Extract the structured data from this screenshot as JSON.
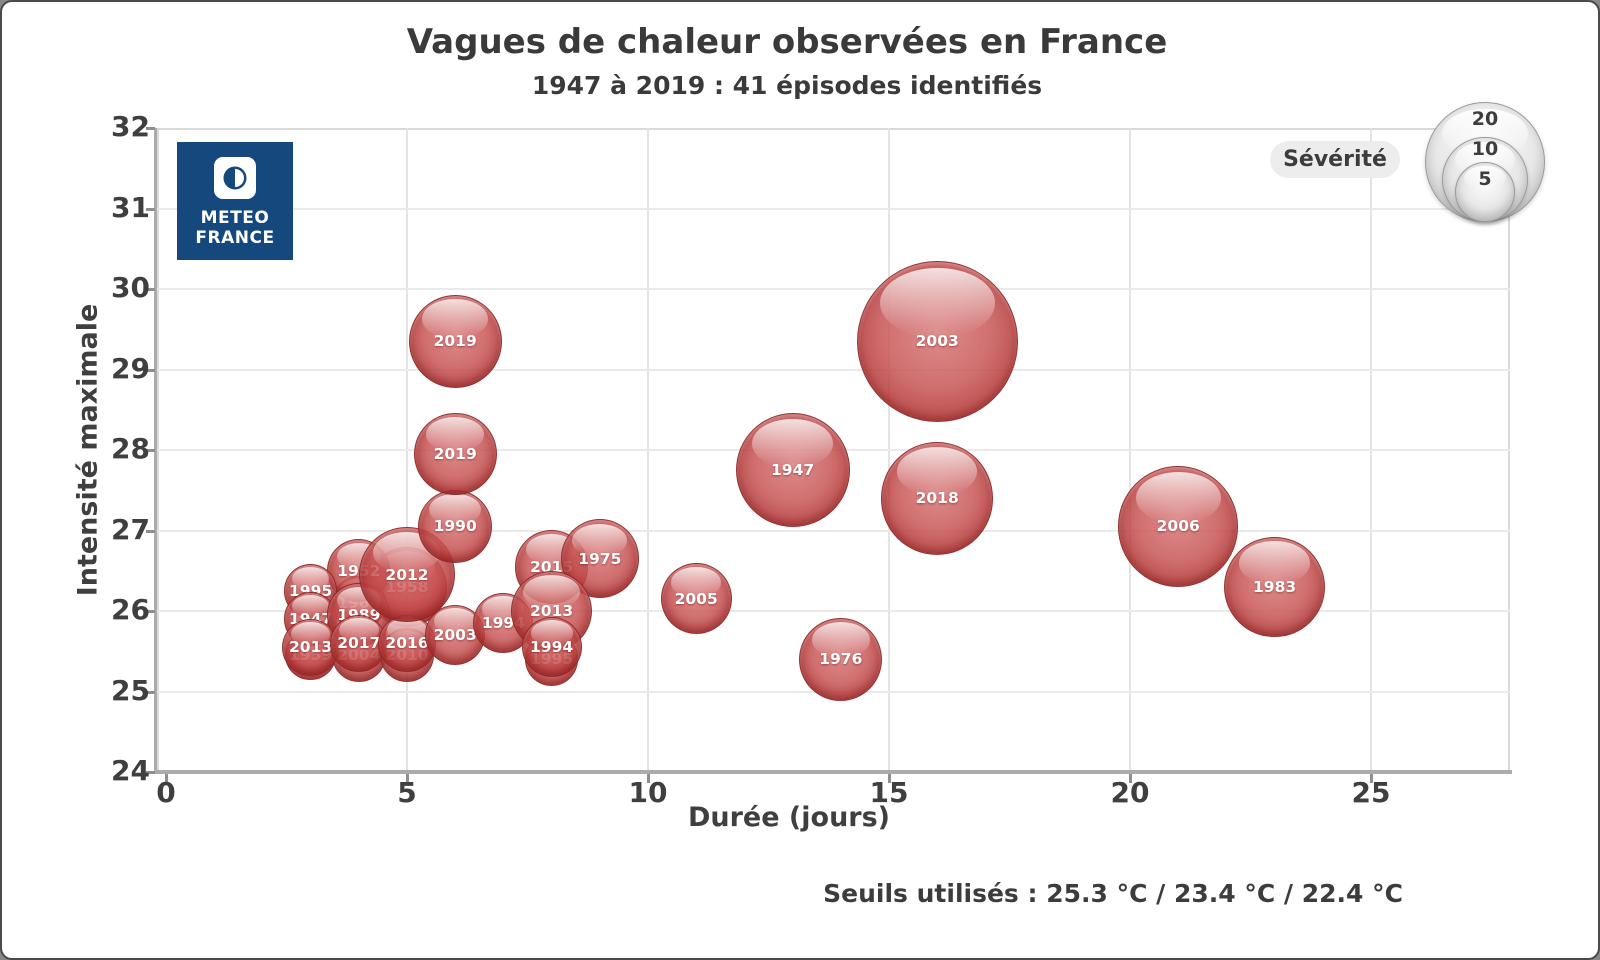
{
  "title": "Vagues de chaleur observées en France",
  "subtitle": "1947 à 2019 : 41 épisodes identifiés",
  "footer": {
    "thresholds_note": "Seuils utilisés : 25.3 °C / 23.4 °C / 22.4 °C"
  },
  "logo": {
    "line1": "METEO",
    "line2": "FRANCE",
    "bg_color": "#15497e"
  },
  "legend": {
    "title": "Sévérité",
    "sizes": [
      20,
      10,
      5
    ]
  },
  "chart_data": {
    "type": "scatter",
    "title": "Vagues de chaleur observées en France",
    "subtitle": "1947 à 2019 : 41 épisodes identifiés",
    "xlabel": "Durée (jours)",
    "ylabel": "Intensité maximale",
    "xlim": [
      0,
      28
    ],
    "ylim": [
      24,
      32
    ],
    "x_ticks": [
      0,
      5,
      10,
      15,
      20,
      25
    ],
    "y_ticks": [
      24,
      25,
      26,
      27,
      28,
      29,
      30,
      31,
      32
    ],
    "grid": true,
    "bubble_color": "#c0504d",
    "size_legend_values": [
      20,
      10,
      5
    ],
    "points": [
      {
        "year": "1958",
        "duration_days": 5,
        "intensity_max": 26.3,
        "severity": 9,
        "hidden": true
      },
      {
        "year": "1964",
        "duration_days": 4,
        "intensity_max": 26.1,
        "severity": 4,
        "hidden": true
      },
      {
        "year": "1959",
        "duration_days": 3,
        "intensity_max": 25.45,
        "severity": 3.5,
        "hidden": true
      },
      {
        "year": "2004",
        "duration_days": 4,
        "intensity_max": 25.45,
        "severity": 4,
        "hidden": true
      },
      {
        "year": "2010",
        "duration_days": 5,
        "intensity_max": 25.45,
        "severity": 4,
        "hidden": true
      },
      {
        "year": "1995",
        "duration_days": 8,
        "intensity_max": 25.4,
        "severity": 4,
        "hidden": true
      },
      {
        "year": "1952",
        "duration_days": 4,
        "intensity_max": 26.5,
        "severity": 5.5
      },
      {
        "year": "1995",
        "duration_days": 3,
        "intensity_max": 26.25,
        "severity": 4
      },
      {
        "year": "1947",
        "duration_days": 3,
        "intensity_max": 25.9,
        "severity": 4
      },
      {
        "year": "2013",
        "duration_days": 3,
        "intensity_max": 25.55,
        "severity": 4.5
      },
      {
        "year": "1989",
        "duration_days": 4,
        "intensity_max": 25.95,
        "severity": 5.5
      },
      {
        "year": "2017",
        "duration_days": 4,
        "intensity_max": 25.6,
        "severity": 4.5
      },
      {
        "year": "2016",
        "duration_days": 5,
        "intensity_max": 25.6,
        "severity": 4.5
      },
      {
        "year": "2012",
        "duration_days": 5,
        "intensity_max": 26.45,
        "severity": 12.5
      },
      {
        "year": "2003",
        "duration_days": 6,
        "intensity_max": 25.7,
        "severity": 5
      },
      {
        "year": "1994",
        "duration_days": 7,
        "intensity_max": 25.85,
        "severity": 5
      },
      {
        "year": "1990",
        "duration_days": 6,
        "intensity_max": 27.05,
        "severity": 7.5
      },
      {
        "year": "2019",
        "duration_days": 6,
        "intensity_max": 27.95,
        "severity": 9.5
      },
      {
        "year": "2019",
        "duration_days": 6,
        "intensity_max": 29.35,
        "severity": 12
      },
      {
        "year": "2015",
        "duration_days": 8,
        "intensity_max": 26.55,
        "severity": 7.5
      },
      {
        "year": "1975",
        "duration_days": 9,
        "intensity_max": 26.65,
        "severity": 8.5
      },
      {
        "year": "2013",
        "duration_days": 8,
        "intensity_max": 26.0,
        "severity": 9
      },
      {
        "year": "1994",
        "duration_days": 8,
        "intensity_max": 25.55,
        "severity": 5
      },
      {
        "year": "2005",
        "duration_days": 11,
        "intensity_max": 26.15,
        "severity": 7
      },
      {
        "year": "1947",
        "duration_days": 13,
        "intensity_max": 27.75,
        "severity": 18
      },
      {
        "year": "1976",
        "duration_days": 14,
        "intensity_max": 25.4,
        "severity": 9.5
      },
      {
        "year": "2018",
        "duration_days": 16,
        "intensity_max": 27.4,
        "severity": 17.5
      },
      {
        "year": "2003",
        "duration_days": 16,
        "intensity_max": 29.35,
        "severity": 36
      },
      {
        "year": "2006",
        "duration_days": 21,
        "intensity_max": 27.05,
        "severity": 20
      },
      {
        "year": "1983",
        "duration_days": 23,
        "intensity_max": 26.3,
        "severity": 14
      }
    ]
  }
}
